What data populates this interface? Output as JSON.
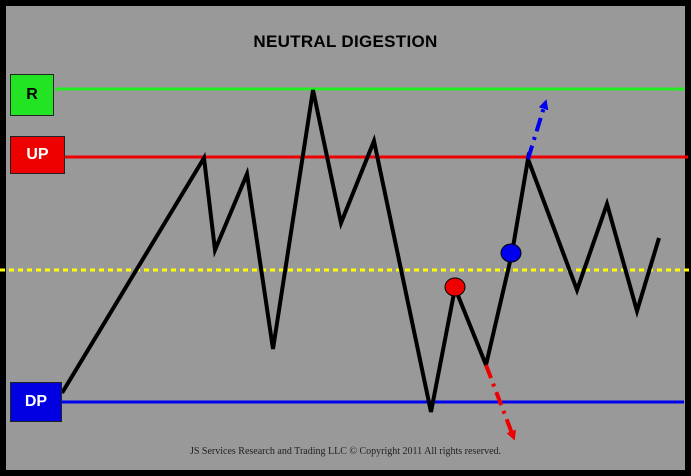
{
  "title": "NEUTRAL DIGESTION",
  "labels": {
    "r": "R",
    "up": "UP",
    "dp": "DP"
  },
  "copyright": "JS Services Research and Trading LLC © Copyright 2011 All rights reserved.",
  "colors": {
    "background": "#999999",
    "frame": "#000000",
    "resistance_line": "#22ee22",
    "up_line": "#ee0000",
    "dp_line": "#0000ee",
    "midline": "#ffff00",
    "price_path": "#000000",
    "red_marker": "#ee0000",
    "blue_marker": "#0000ee",
    "up_arrow": "#0000ee",
    "down_arrow": "#ee0000"
  }
}
